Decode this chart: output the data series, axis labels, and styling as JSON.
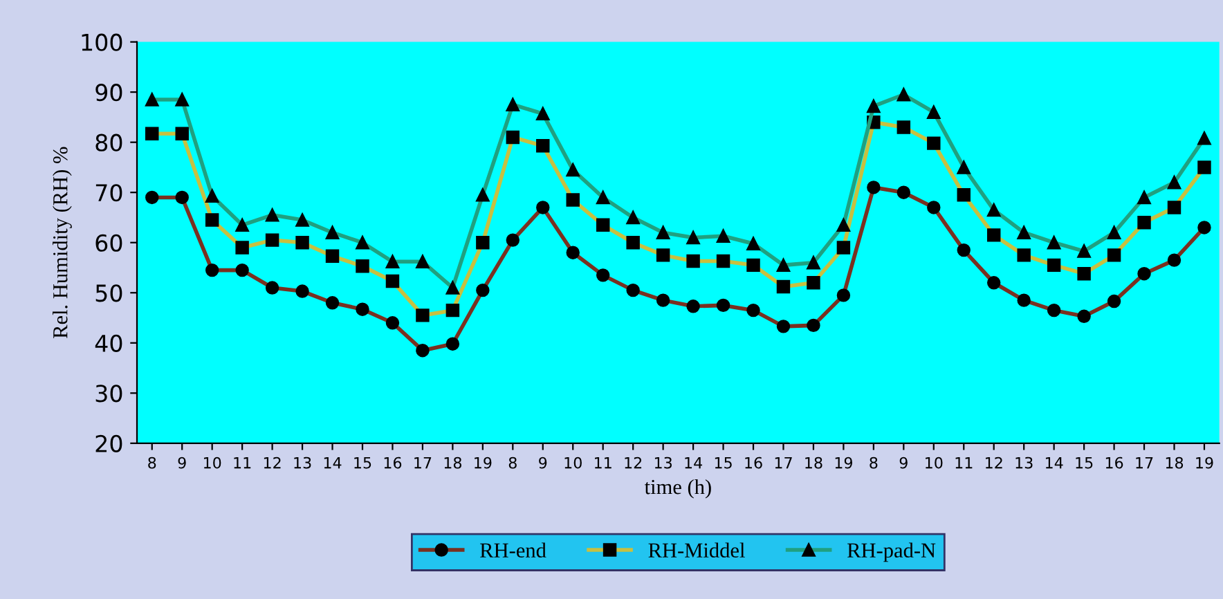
{
  "chart_data": {
    "type": "line",
    "xlabel": "time (h)",
    "ylabel": "Rel. Humidity (RH) %",
    "categories": [
      "8",
      "9",
      "10",
      "11",
      "12",
      "13",
      "14",
      "15",
      "16",
      "17",
      "18",
      "19",
      "8",
      "9",
      "10",
      "11",
      "12",
      "13",
      "14",
      "15",
      "16",
      "17",
      "18",
      "19",
      "8",
      "9",
      "10",
      "11",
      "12",
      "13",
      "14",
      "15",
      "16",
      "17",
      "18",
      "19"
    ],
    "series": [
      {
        "name": "RH-end",
        "color": "#7a3020",
        "marker": "circle",
        "values": [
          69,
          69,
          54.5,
          54.5,
          51,
          50.3,
          48,
          46.7,
          44,
          38.5,
          39.8,
          50.5,
          60.5,
          67,
          58,
          53.5,
          50.5,
          48.5,
          47.3,
          47.5,
          46.5,
          43.3,
          43.5,
          49.5,
          71,
          70,
          67,
          58.5,
          52,
          48.5,
          46.5,
          45.3,
          48.3,
          53.8,
          56.5,
          63
        ]
      },
      {
        "name": "RH-Middel",
        "color": "#c8c040",
        "marker": "square",
        "values": [
          81.7,
          81.7,
          64.5,
          59,
          60.5,
          60,
          57.3,
          55.3,
          52.3,
          45.5,
          46.5,
          60,
          81,
          79.3,
          68.5,
          63.5,
          60,
          57.5,
          56.3,
          56.3,
          55.5,
          51.2,
          52,
          59,
          84,
          83,
          79.8,
          69.5,
          61.5,
          57.5,
          55.5,
          53.8,
          57.5,
          64,
          67,
          75
        ]
      },
      {
        "name": "RH-pad-N",
        "color": "#20a080",
        "marker": "triangle",
        "values": [
          88.5,
          88.5,
          69.3,
          63.5,
          65.5,
          64.5,
          62,
          60,
          56.2,
          56.2,
          51,
          69.5,
          87.5,
          85.7,
          74.5,
          69,
          65,
          62,
          61,
          61.3,
          59.8,
          55.5,
          56,
          63.5,
          87.2,
          89.5,
          86,
          75,
          66.5,
          62,
          60,
          58.3,
          62,
          69,
          72,
          80.8
        ]
      }
    ],
    "ylim": [
      20,
      100
    ],
    "yticks": [
      20,
      30,
      40,
      50,
      60,
      70,
      80,
      90,
      100
    ],
    "grid": false,
    "legend": "bottom"
  }
}
